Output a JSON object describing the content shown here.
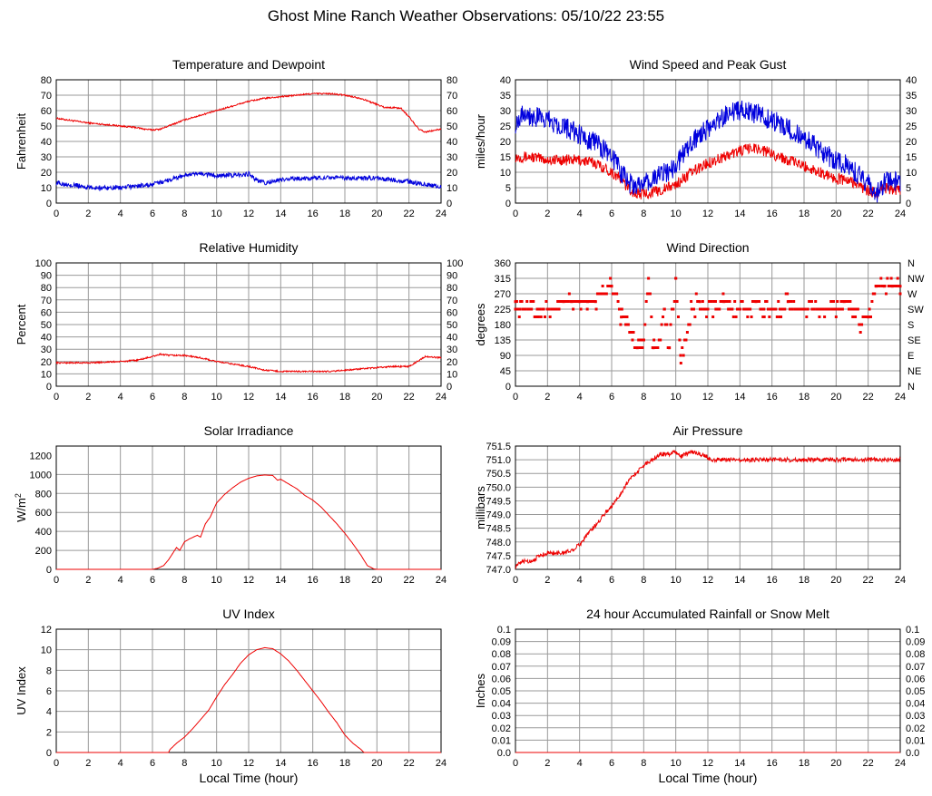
{
  "page": {
    "title": "Ghost Mine Ranch Weather Observations: 05/10/22 23:55"
  },
  "colors": {
    "red": "#ee0000",
    "blue": "#0000dd",
    "grid": "#9a9a9a",
    "frame": "#000000"
  },
  "chart_data": [
    {
      "id": "temp",
      "type": "line",
      "title": "Temperature and Dewpoint",
      "ylabel": "Fahrenheit",
      "xlabel": "",
      "xlim": [
        0,
        24
      ],
      "ylim": [
        0,
        80
      ],
      "xticks": [
        "0",
        "2",
        "4",
        "6",
        "8",
        "10",
        "12",
        "14",
        "16",
        "18",
        "20",
        "22",
        "24"
      ],
      "yticks": [
        "0",
        "10",
        "20",
        "30",
        "40",
        "50",
        "60",
        "70",
        "80"
      ],
      "right_axis": true,
      "series": [
        {
          "name": "Temperature",
          "color": "red",
          "x": [
            0,
            1,
            2,
            3,
            4,
            5,
            5.5,
            6,
            6.5,
            7,
            8,
            9,
            10,
            11,
            12,
            13,
            14,
            15,
            16,
            17,
            18,
            19,
            19.5,
            20,
            20.5,
            21,
            21.5,
            22,
            22.3,
            22.6,
            23,
            23.5,
            24
          ],
          "y": [
            55,
            53.5,
            52,
            51,
            50,
            49,
            48,
            47.5,
            48,
            50,
            54,
            57,
            60,
            63,
            66,
            68,
            69,
            70,
            71,
            71,
            70,
            68,
            66,
            64,
            62,
            62,
            61.5,
            56,
            52,
            48,
            46,
            47,
            48
          ],
          "noise": 0.5
        },
        {
          "name": "Dewpoint",
          "color": "blue",
          "x": [
            0,
            1,
            2,
            3,
            4,
            5,
            6,
            7,
            8,
            9,
            10,
            11,
            12,
            12.5,
            13,
            14,
            15,
            16,
            17,
            18,
            19,
            20,
            21,
            22,
            23,
            24
          ],
          "y": [
            13,
            12,
            10,
            10,
            10,
            11,
            12,
            15,
            18,
            19,
            18,
            18,
            19,
            15,
            13,
            15,
            16,
            16,
            17,
            16,
            16,
            16,
            15,
            14,
            12,
            11
          ],
          "noise": 1.5
        }
      ]
    },
    {
      "id": "wind",
      "type": "line",
      "title": "Wind Speed and Peak Gust",
      "ylabel": "miles/hour",
      "xlabel": "",
      "xlim": [
        0,
        24
      ],
      "ylim": [
        0,
        40
      ],
      "xticks": [
        "0",
        "2",
        "4",
        "6",
        "8",
        "10",
        "12",
        "14",
        "16",
        "18",
        "20",
        "22",
        "24"
      ],
      "yticks": [
        "0",
        "5",
        "10",
        "15",
        "20",
        "25",
        "30",
        "35",
        "40"
      ],
      "right_axis": true,
      "series": [
        {
          "name": "Wind Speed",
          "color": "red",
          "x": [
            0,
            1,
            2,
            3,
            4,
            5,
            6,
            6.5,
            7,
            7.5,
            8,
            9,
            10,
            11,
            12,
            13,
            14,
            15,
            16,
            17,
            18,
            19,
            20,
            21,
            22,
            22.5,
            23,
            24
          ],
          "y": [
            15,
            15,
            14,
            14,
            14,
            13,
            10,
            8,
            5,
            3,
            3,
            4,
            6,
            10,
            13,
            15,
            17,
            18,
            16,
            14,
            12,
            10,
            8,
            7,
            4,
            3,
            5,
            4
          ],
          "noise": 1.8
        },
        {
          "name": "Peak Gust",
          "color": "blue",
          "x": [
            0,
            0.5,
            1,
            2,
            3,
            4,
            5,
            6,
            6.5,
            7,
            7.5,
            8,
            9,
            10,
            11,
            12,
            13,
            14,
            15,
            16,
            17,
            18,
            19,
            20,
            21,
            22,
            22.5,
            23,
            24
          ],
          "y": [
            26,
            30,
            28,
            27,
            25,
            22,
            20,
            15,
            11,
            7,
            5,
            6,
            9,
            12,
            20,
            24,
            28,
            30,
            29,
            27,
            24,
            21,
            17,
            14,
            11,
            6,
            3,
            7,
            7
          ],
          "noise": 3.5
        }
      ]
    },
    {
      "id": "rh",
      "type": "line",
      "title": "Relative Humidity",
      "ylabel": "Percent",
      "xlabel": "",
      "xlim": [
        0,
        24
      ],
      "ylim": [
        0,
        100
      ],
      "xticks": [
        "0",
        "2",
        "4",
        "6",
        "8",
        "10",
        "12",
        "14",
        "16",
        "18",
        "20",
        "22",
        "24"
      ],
      "yticks": [
        "0",
        "10",
        "20",
        "30",
        "40",
        "50",
        "60",
        "70",
        "80",
        "90",
        "100"
      ],
      "right_axis": true,
      "series": [
        {
          "name": "Relative Humidity",
          "color": "red",
          "x": [
            0,
            2,
            4,
            5,
            6,
            6.5,
            7,
            8,
            9,
            10,
            11,
            12,
            13,
            14,
            15,
            16,
            17,
            18,
            19,
            20,
            21,
            22,
            22.5,
            23,
            24
          ],
          "y": [
            19,
            19,
            20,
            21,
            24,
            26,
            25,
            25,
            23,
            20,
            18,
            16,
            13,
            12,
            12,
            12,
            12,
            13,
            14,
            15,
            16,
            16,
            20,
            24,
            23
          ],
          "noise": 0.6
        }
      ]
    },
    {
      "id": "wdir",
      "type": "scatter",
      "title": "Wind Direction",
      "ylabel": "degrees",
      "xlabel": "",
      "xlim": [
        0,
        24
      ],
      "ylim": [
        0,
        360
      ],
      "xticks": [
        "0",
        "2",
        "4",
        "6",
        "8",
        "10",
        "12",
        "14",
        "16",
        "18",
        "20",
        "22",
        "24"
      ],
      "yticks": [
        "0",
        "45",
        "90",
        "135",
        "180",
        "225",
        "270",
        "315",
        "360"
      ],
      "right_labels": [
        "N",
        "NE",
        "E",
        "SE",
        "S",
        "SW",
        "W",
        "NW",
        "N"
      ],
      "series": [
        {
          "name": "Wind Direction",
          "color": "red",
          "x": [
            0,
            0.3,
            0.6,
            1,
            1.5,
            2,
            2.5,
            3,
            3.5,
            4,
            4.5,
            5,
            5.3,
            5.6,
            6,
            6.3,
            6.6,
            7,
            7.3,
            7.6,
            8,
            8.3,
            8.6,
            9,
            9.3,
            9.6,
            10,
            10.3,
            10.6,
            11,
            11.5,
            12,
            12.5,
            13,
            13.5,
            14,
            14.5,
            15,
            15.5,
            16,
            16.5,
            17,
            17.5,
            18,
            18.5,
            19,
            19.5,
            20,
            20.5,
            21,
            21.5,
            22,
            22.5,
            23,
            23.5,
            24
          ],
          "y": [
            247,
            225,
            225,
            225,
            225,
            225,
            225,
            247,
            247,
            247,
            247,
            247,
            270,
            270,
            292,
            270,
            202,
            180,
            135,
            112,
            135,
            315,
            112,
            135,
            225,
            112,
            315,
            90,
            135,
            225,
            247,
            225,
            225,
            247,
            225,
            225,
            225,
            247,
            225,
            225,
            225,
            247,
            225,
            225,
            225,
            225,
            225,
            225,
            247,
            225,
            180,
            202,
            292,
            292,
            292,
            292
          ],
          "jitter": 22
        }
      ]
    },
    {
      "id": "solar",
      "type": "line",
      "title": "Solar Irradiance",
      "ylabel": "W/m2",
      "ylabel_base": "W/m",
      "ylabel_sup": "2",
      "xlabel": "",
      "xlim": [
        0,
        24
      ],
      "ylim": [
        0,
        1300
      ],
      "xticks": [
        "0",
        "2",
        "4",
        "6",
        "8",
        "10",
        "12",
        "14",
        "16",
        "18",
        "20",
        "22",
        "24"
      ],
      "yticks": [
        "0",
        "200",
        "400",
        "600",
        "800",
        "1000",
        "1200"
      ],
      "right_axis": false,
      "series": [
        {
          "name": "Solar Irradiance",
          "color": "red",
          "x": [
            0,
            6,
            6.3,
            6.7,
            7,
            7.5,
            7.7,
            8,
            8.3,
            8.8,
            9,
            9.3,
            9.6,
            10,
            10.5,
            11,
            11.5,
            12,
            12.5,
            13,
            13.5,
            13.8,
            14,
            14.5,
            15,
            15.5,
            16,
            16.5,
            17,
            17.5,
            18,
            18.5,
            19,
            19.4,
            19.8,
            20,
            24
          ],
          "y": [
            0,
            0,
            10,
            40,
            100,
            230,
            200,
            290,
            320,
            360,
            340,
            480,
            550,
            700,
            790,
            860,
            920,
            960,
            985,
            995,
            990,
            940,
            950,
            900,
            850,
            780,
            730,
            660,
            570,
            480,
            380,
            270,
            150,
            40,
            5,
            0,
            0
          ],
          "noise": 0
        }
      ]
    },
    {
      "id": "pressure",
      "type": "line",
      "title": "Air Pressure",
      "ylabel": "millibars",
      "xlabel": "",
      "xlim": [
        0,
        24
      ],
      "ylim": [
        747.0,
        751.5
      ],
      "xticks": [
        "0",
        "2",
        "4",
        "6",
        "8",
        "10",
        "12",
        "14",
        "16",
        "18",
        "20",
        "22",
        "24"
      ],
      "yticks": [
        "747.0",
        "747.5",
        "748.0",
        "748.5",
        "749.0",
        "749.5",
        "750.0",
        "750.5",
        "751.0",
        "751.5"
      ],
      "right_axis": false,
      "series": [
        {
          "name": "Air Pressure",
          "color": "red",
          "x": [
            0,
            0.5,
            1,
            1.5,
            2,
            3,
            3.5,
            4,
            4.5,
            5,
            5.5,
            6,
            6.5,
            7,
            7.5,
            8,
            8.5,
            9,
            9.5,
            10,
            10.3,
            10.6,
            11,
            11.5,
            12,
            12.01,
            24
          ],
          "y": [
            747.1,
            747.3,
            747.3,
            747.5,
            747.6,
            747.6,
            747.7,
            747.9,
            748.3,
            748.6,
            749.0,
            749.3,
            749.7,
            750.2,
            750.5,
            750.8,
            751.0,
            751.2,
            751.2,
            751.3,
            751.1,
            751.2,
            751.3,
            751.2,
            751.1,
            751.0,
            751.0
          ],
          "noise": 0.08
        }
      ]
    },
    {
      "id": "uv",
      "type": "line",
      "title": "UV Index",
      "ylabel": "UV Index",
      "xlabel": "Local Time (hour)",
      "xlim": [
        0,
        24
      ],
      "ylim": [
        0,
        12
      ],
      "xticks": [
        "0",
        "2",
        "4",
        "6",
        "8",
        "10",
        "12",
        "14",
        "16",
        "18",
        "20",
        "22",
        "24"
      ],
      "yticks": [
        "0",
        "2",
        "4",
        "6",
        "8",
        "10",
        "12"
      ],
      "right_axis": false,
      "series": [
        {
          "name": "UV Index",
          "color": "red",
          "x": [
            0,
            7,
            7.1,
            7.5,
            8,
            8.5,
            9,
            9.5,
            10,
            10.5,
            11,
            11.5,
            12,
            12.5,
            13,
            13.5,
            14,
            14.5,
            15,
            15.5,
            16,
            16.5,
            17,
            17.5,
            18,
            18.5,
            19,
            19.2,
            24
          ],
          "y": [
            0,
            0,
            0.3,
            0.9,
            1.5,
            2.3,
            3.2,
            4.1,
            5.4,
            6.6,
            7.6,
            8.7,
            9.5,
            10,
            10.2,
            10.1,
            9.6,
            8.9,
            8.0,
            7.0,
            6.0,
            5.0,
            3.9,
            2.9,
            1.7,
            0.9,
            0.3,
            0,
            0
          ],
          "noise": 0
        }
      ]
    },
    {
      "id": "rain",
      "type": "line",
      "title": "24 hour Accumulated Rainfall or Snow Melt",
      "ylabel": "Inches",
      "xlabel": "Local Time (hour)",
      "xlim": [
        0,
        24
      ],
      "ylim": [
        0,
        0.1
      ],
      "xticks": [
        "0",
        "2",
        "4",
        "6",
        "8",
        "10",
        "12",
        "14",
        "16",
        "18",
        "20",
        "22",
        "24"
      ],
      "yticks": [
        "0.0",
        "0.01",
        "0.02",
        "0.03",
        "0.04",
        "0.05",
        "0.06",
        "0.07",
        "0.08",
        "0.09",
        "0.1"
      ],
      "right_axis": true,
      "series": [
        {
          "name": "Rainfall",
          "color": "red",
          "x": [
            0,
            24
          ],
          "y": [
            0,
            0
          ],
          "noise": 0
        }
      ]
    }
  ]
}
